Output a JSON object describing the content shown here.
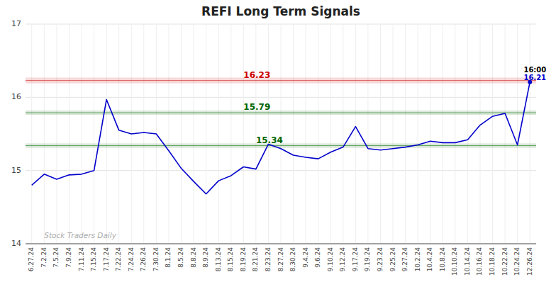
{
  "chart_data": {
    "type": "line",
    "title": "REFI Long Term Signals",
    "categories": [
      "6.27.24",
      "7.2.24",
      "7.5.24",
      "7.9.24",
      "7.11.24",
      "7.15.24",
      "7.17.24",
      "7.22.24",
      "7.24.24",
      "7.26.24",
      "7.30.24",
      "8.1.24",
      "8.5.24",
      "8.8.24",
      "8.9.24",
      "8.13.24",
      "8.15.24",
      "8.19.24",
      "8.21.24",
      "8.23.24",
      "8.27.24",
      "8.30.24",
      "9.4.24",
      "9.6.24",
      "9.10.24",
      "9.12.24",
      "9.17.24",
      "9.19.24",
      "9.23.24",
      "9.25.24",
      "9.27.24",
      "10.2.24",
      "10.4.24",
      "10.8.24",
      "10.10.24",
      "10.14.24",
      "10.16.24",
      "10.18.24",
      "10.22.24",
      "10.24.24",
      "12.26.24"
    ],
    "values": [
      14.8,
      14.95,
      14.88,
      14.94,
      14.95,
      15.0,
      15.97,
      15.55,
      15.5,
      15.52,
      15.5,
      15.27,
      15.03,
      14.85,
      14.68,
      14.86,
      14.93,
      15.05,
      15.02,
      15.36,
      15.3,
      15.21,
      15.18,
      15.16,
      15.25,
      15.32,
      15.6,
      15.3,
      15.28,
      15.3,
      15.32,
      15.35,
      15.4,
      15.38,
      15.38,
      15.42,
      15.62,
      15.74,
      15.78,
      15.35,
      16.21
    ],
    "color": "#0000cc",
    "marker": "circle",
    "reference_lines": [
      {
        "value": 16.23,
        "band": [
          16.19,
          16.27
        ],
        "label": "16.23",
        "color": "#cc0000"
      },
      {
        "value": 15.79,
        "band": [
          15.76,
          15.82
        ],
        "label": "15.79",
        "color": "#006600"
      },
      {
        "value": 15.34,
        "band": [
          15.31,
          15.37
        ],
        "label": "15.34",
        "color": "#006600"
      }
    ],
    "annotations": [
      {
        "text": "16:00",
        "color": "#000000"
      },
      {
        "text": "16.21",
        "color": "#0000cc"
      }
    ],
    "watermark": "Stock Traders Daily",
    "ylim": [
      14.0,
      17.0
    ],
    "yticks": [
      14,
      15,
      16,
      17
    ],
    "grid": true
  }
}
